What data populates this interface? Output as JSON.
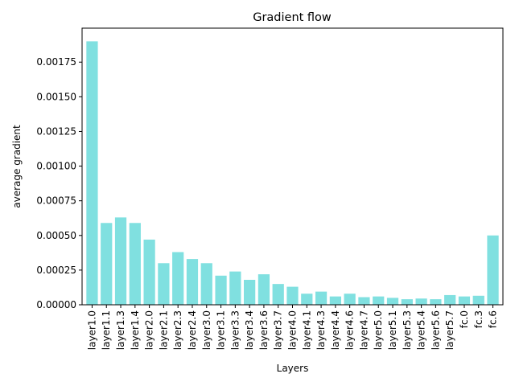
{
  "chart_data": {
    "type": "bar",
    "title": "Gradient flow",
    "xlabel": "Layers",
    "ylabel": "average gradient",
    "ylim": [
      0,
      0.0019
    ],
    "yticks": [
      "0.00000",
      "0.00025",
      "0.00050",
      "0.00075",
      "0.00100",
      "0.00125",
      "0.00150",
      "0.00175"
    ],
    "bar_color": "#80e0e0",
    "categories": [
      "layer1.0",
      "layer1.1",
      "layer1.3",
      "layer1.4",
      "layer2.0",
      "layer2.1",
      "layer2.3",
      "layer2.4",
      "layer3.0",
      "layer3.1",
      "layer3.3",
      "layer3.4",
      "layer3.6",
      "layer3.7",
      "layer4.0",
      "layer4.1",
      "layer4.3",
      "layer4.4",
      "layer4.6",
      "layer4.7",
      "layer5.0",
      "layer5.1",
      "layer5.3",
      "layer5.4",
      "layer5.6",
      "layer5.7",
      "fc.0",
      "fc.3",
      "fc.6"
    ],
    "values": [
      0.0019,
      0.00059,
      0.00063,
      0.00059,
      0.00047,
      0.0003,
      0.00038,
      0.00033,
      0.0003,
      0.00021,
      0.00024,
      0.00018,
      0.00022,
      0.00015,
      0.00013,
      8e-05,
      9.5e-05,
      6e-05,
      8e-05,
      5.5e-05,
      6e-05,
      5e-05,
      4e-05,
      4.5e-05,
      4e-05,
      7e-05,
      6e-05,
      6.5e-05,
      0.0005
    ],
    "grid": false,
    "legend": "none"
  }
}
